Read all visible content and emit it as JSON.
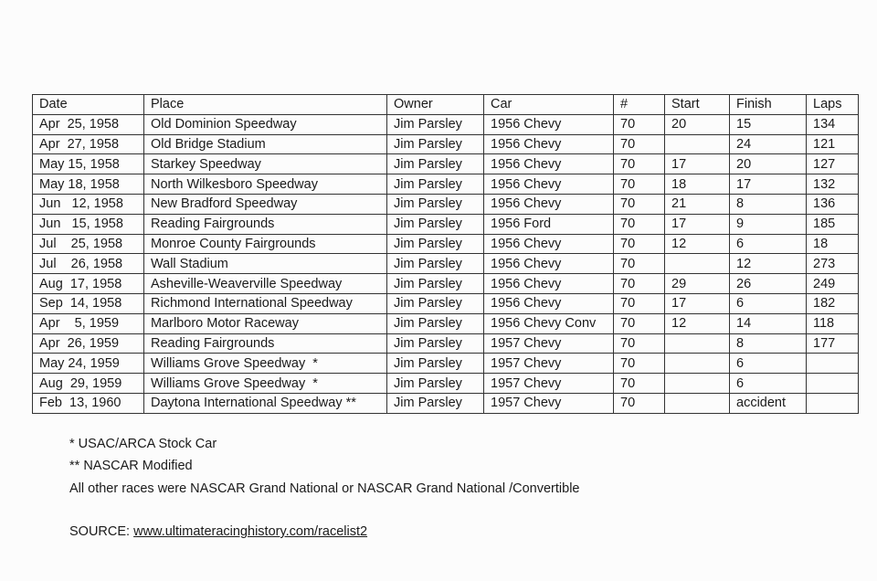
{
  "table": {
    "headers": [
      "Date",
      "Place",
      "Owner",
      "Car",
      "#",
      "Start",
      "Finish",
      "Laps"
    ],
    "rows": [
      [
        "Apr  25, 1958",
        "Old Dominion Speedway",
        "Jim Parsley",
        "1956 Chevy",
        "70",
        "20",
        "15",
        "134"
      ],
      [
        "Apr  27, 1958",
        "Old Bridge Stadium",
        "Jim Parsley",
        "1956 Chevy",
        "70",
        "",
        "24",
        "121"
      ],
      [
        "May 15, 1958",
        "Starkey Speedway",
        "Jim Parsley",
        "1956 Chevy",
        "70",
        "17",
        "20",
        "127"
      ],
      [
        "May 18, 1958",
        "North Wilkesboro Speedway",
        "Jim Parsley",
        "1956 Chevy",
        "70",
        "18",
        "17",
        "132"
      ],
      [
        "Jun   12, 1958",
        "New Bradford Speedway",
        "Jim Parsley",
        "1956 Chevy",
        "70",
        "21",
        "8",
        "136"
      ],
      [
        "Jun   15, 1958",
        "Reading Fairgrounds",
        "Jim Parsley",
        "1956 Ford",
        "70",
        "17",
        "9",
        "185"
      ],
      [
        "Jul    25, 1958",
        "Monroe County Fairgrounds",
        "Jim Parsley",
        "1956 Chevy",
        "70",
        "12",
        "6",
        "18"
      ],
      [
        "Jul    26, 1958",
        "Wall Stadium",
        "Jim Parsley",
        "1956 Chevy",
        "70",
        "",
        "12",
        "273"
      ],
      [
        "Aug  17, 1958",
        "Asheville-Weaverville Speedway",
        "Jim Parsley",
        "1956 Chevy",
        "70",
        "29",
        "26",
        "249"
      ],
      [
        "Sep  14, 1958",
        "Richmond International Speedway",
        "Jim Parsley",
        "1956 Chevy",
        "70",
        "17",
        "6",
        "182"
      ],
      [
        "Apr    5, 1959",
        "Marlboro Motor Raceway",
        "Jim Parsley",
        "1956 Chevy Conv",
        "70",
        "12",
        "14",
        "118"
      ],
      [
        "Apr  26, 1959",
        "Reading Fairgrounds",
        "Jim Parsley",
        "1957 Chevy",
        "70",
        "",
        "8",
        "177"
      ],
      [
        "May 24, 1959",
        "Williams Grove Speedway  *",
        "Jim Parsley",
        "1957 Chevy",
        "70",
        "",
        "6",
        ""
      ],
      [
        "Aug  29, 1959",
        "Williams Grove Speedway  *",
        "Jim Parsley",
        "1957 Chevy",
        "70",
        "",
        "6",
        ""
      ],
      [
        "Feb  13, 1960",
        "Daytona International Speedway **",
        "Jim Parsley",
        "1957 Chevy",
        "70",
        "",
        "accident",
        ""
      ]
    ]
  },
  "notes": {
    "single_star": "*  USAC/ARCA Stock Car",
    "double_star": "** NASCAR Modified",
    "other": "All other races were NASCAR Grand National or NASCAR Grand National /Convertible",
    "source_label": "SOURCE: ",
    "source_link": "www.ultimateracinghistory.com/racelist2"
  }
}
